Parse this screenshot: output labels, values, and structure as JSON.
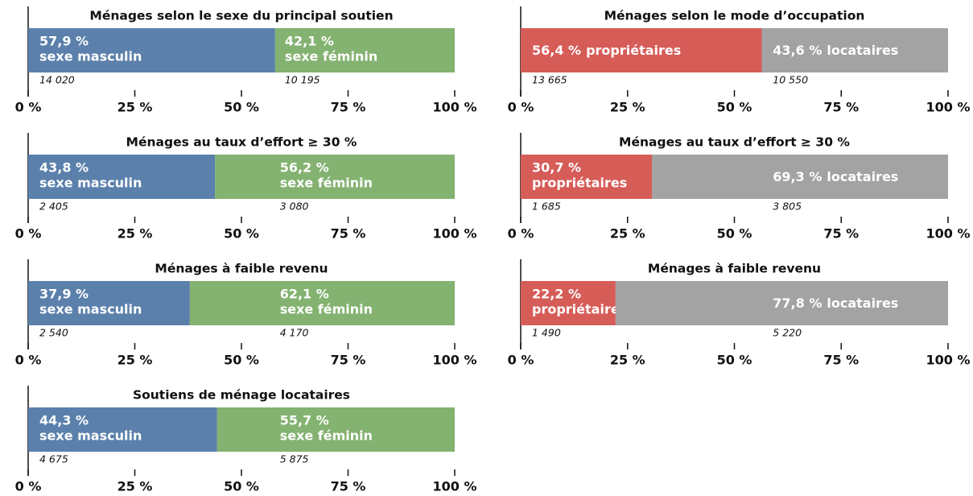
{
  "chart_data": [
    {
      "type": "stacked-bar",
      "title": "Ménages selon le sexe du principal soutien",
      "series": [
        {
          "name": "sexe masculin",
          "color": "#5b80ab",
          "values": [
            57.9
          ],
          "value_labels": [
            "57,9 %"
          ],
          "counts": [
            {
              "value": 14020,
              "label": "14 020"
            }
          ]
        },
        {
          "name": "sexe féminin",
          "color": "#84b271",
          "values": [
            42.1
          ],
          "value_labels": [
            "42,1 %"
          ],
          "counts": [
            {
              "value": 10195,
              "label": "10 195"
            }
          ]
        }
      ],
      "xlim": [
        0,
        100
      ],
      "xticks": [
        {
          "value": 0,
          "label": "0 %"
        },
        {
          "value": 25,
          "label": "25 %"
        },
        {
          "value": 50,
          "label": "50 %"
        },
        {
          "value": 75,
          "label": "75 %"
        },
        {
          "value": 100,
          "label": "100 %"
        }
      ]
    },
    {
      "type": "stacked-bar",
      "title": "Ménages selon le mode d’occupation",
      "series": [
        {
          "name": "propriétaires",
          "color": "#d65c58",
          "values": [
            56.4
          ],
          "value_labels": [
            "56,4 %"
          ],
          "counts": [
            {
              "value": 13665,
              "label": "13 665"
            }
          ]
        },
        {
          "name": "locataires",
          "color": "#a3a3a3",
          "values": [
            43.6
          ],
          "value_labels": [
            "43,6 %"
          ],
          "counts": [
            {
              "value": 10550,
              "label": "10 550"
            }
          ]
        }
      ],
      "xlim": [
        0,
        100
      ],
      "xticks": [
        {
          "value": 0,
          "label": "0 %"
        },
        {
          "value": 25,
          "label": "25 %"
        },
        {
          "value": 50,
          "label": "50 %"
        },
        {
          "value": 75,
          "label": "75 %"
        },
        {
          "value": 100,
          "label": "100 %"
        }
      ]
    },
    {
      "type": "stacked-bar",
      "title": "Ménages au taux d’effort ≥ 30 %",
      "series": [
        {
          "name": "sexe masculin",
          "color": "#5b80ab",
          "values": [
            43.8
          ],
          "value_labels": [
            "43,8 %"
          ],
          "counts": [
            {
              "value": 2405,
              "label": "2 405"
            }
          ]
        },
        {
          "name": "sexe féminin",
          "color": "#84b271",
          "values": [
            56.2
          ],
          "value_labels": [
            "56,2 %"
          ],
          "counts": [
            {
              "value": 3080,
              "label": "3 080"
            }
          ]
        }
      ],
      "xlim": [
        0,
        100
      ],
      "xticks": [
        {
          "value": 0,
          "label": "0 %"
        },
        {
          "value": 25,
          "label": "25 %"
        },
        {
          "value": 50,
          "label": "50 %"
        },
        {
          "value": 75,
          "label": "75 %"
        },
        {
          "value": 100,
          "label": "100 %"
        }
      ]
    },
    {
      "type": "stacked-bar",
      "title": "Ménages au taux d’effort ≥ 30 %",
      "series": [
        {
          "name": "propriétaires",
          "color": "#d65c58",
          "values": [
            30.7
          ],
          "value_labels": [
            "30,7 %"
          ],
          "counts": [
            {
              "value": 1685,
              "label": "1 685"
            }
          ]
        },
        {
          "name": "locataires",
          "color": "#a3a3a3",
          "values": [
            69.3
          ],
          "value_labels": [
            "69,3 %"
          ],
          "counts": [
            {
              "value": 3805,
              "label": "3 805"
            }
          ]
        }
      ],
      "xlim": [
        0,
        100
      ],
      "xticks": [
        {
          "value": 0,
          "label": "0 %"
        },
        {
          "value": 25,
          "label": "25 %"
        },
        {
          "value": 50,
          "label": "50 %"
        },
        {
          "value": 75,
          "label": "75 %"
        },
        {
          "value": 100,
          "label": "100 %"
        }
      ]
    },
    {
      "type": "stacked-bar",
      "title": "Ménages à faible revenu",
      "series": [
        {
          "name": "sexe masculin",
          "color": "#5b80ab",
          "values": [
            37.9
          ],
          "value_labels": [
            "37,9 %"
          ],
          "counts": [
            {
              "value": 2540,
              "label": "2 540"
            }
          ]
        },
        {
          "name": "sexe féminin",
          "color": "#84b271",
          "values": [
            62.1
          ],
          "value_labels": [
            "62,1 %"
          ],
          "counts": [
            {
              "value": 4170,
              "label": "4 170"
            }
          ]
        }
      ],
      "xlim": [
        0,
        100
      ],
      "xticks": [
        {
          "value": 0,
          "label": "0 %"
        },
        {
          "value": 25,
          "label": "25 %"
        },
        {
          "value": 50,
          "label": "50 %"
        },
        {
          "value": 75,
          "label": "75 %"
        },
        {
          "value": 100,
          "label": "100 %"
        }
      ]
    },
    {
      "type": "stacked-bar",
      "title": "Ménages à faible revenu",
      "series": [
        {
          "name": "propriétaires",
          "color": "#d65c58",
          "values": [
            22.2
          ],
          "value_labels": [
            "22,2 %"
          ],
          "counts": [
            {
              "value": 1490,
              "label": "1 490"
            }
          ]
        },
        {
          "name": "locataires",
          "color": "#a3a3a3",
          "values": [
            77.8
          ],
          "value_labels": [
            "77,8 %"
          ],
          "counts": [
            {
              "value": 5220,
              "label": "5 220"
            }
          ]
        }
      ],
      "xlim": [
        0,
        100
      ],
      "xticks": [
        {
          "value": 0,
          "label": "0 %"
        },
        {
          "value": 25,
          "label": "25 %"
        },
        {
          "value": 50,
          "label": "50 %"
        },
        {
          "value": 75,
          "label": "75 %"
        },
        {
          "value": 100,
          "label": "100 %"
        }
      ]
    },
    {
      "type": "stacked-bar",
      "title": "Soutiens de ménage locataires",
      "series": [
        {
          "name": "sexe masculin",
          "color": "#5b80ab",
          "values": [
            44.3
          ],
          "value_labels": [
            "44,3 %"
          ],
          "counts": [
            {
              "value": 4675,
              "label": "4 675"
            }
          ]
        },
        {
          "name": "sexe féminin",
          "color": "#84b271",
          "values": [
            55.7
          ],
          "value_labels": [
            "55,7 %"
          ],
          "counts": [
            {
              "value": 5875,
              "label": "5 875"
            }
          ]
        }
      ],
      "xlim": [
        0,
        100
      ],
      "xticks": [
        {
          "value": 0,
          "label": "0 %"
        },
        {
          "value": 25,
          "label": "25 %"
        },
        {
          "value": 50,
          "label": "50 %"
        },
        {
          "value": 75,
          "label": "75 %"
        },
        {
          "value": 100,
          "label": "100 %"
        }
      ]
    }
  ]
}
